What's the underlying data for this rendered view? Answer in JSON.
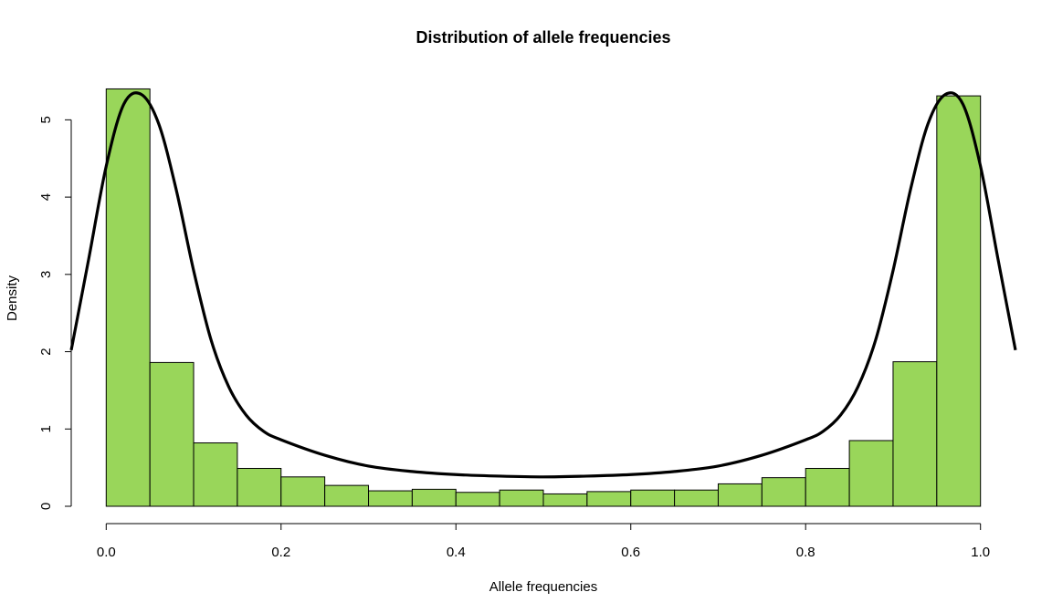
{
  "chart_data": {
    "type": "bar",
    "title": "Distribution of allele frequencies",
    "xlabel": "Allele frequencies",
    "ylabel": "Density",
    "xlim": [
      -0.04,
      1.04
    ],
    "ylim": [
      0,
      5.5
    ],
    "x_ticks": [
      "0.0",
      "0.2",
      "0.4",
      "0.6",
      "0.8",
      "1.0"
    ],
    "y_ticks": [
      "0",
      "1",
      "2",
      "3",
      "4",
      "5"
    ],
    "bin_width": 0.05,
    "bins": [
      {
        "start": 0.0,
        "value": 5.4
      },
      {
        "start": 0.05,
        "value": 1.86
      },
      {
        "start": 0.1,
        "value": 0.82
      },
      {
        "start": 0.15,
        "value": 0.49
      },
      {
        "start": 0.2,
        "value": 0.38
      },
      {
        "start": 0.25,
        "value": 0.27
      },
      {
        "start": 0.3,
        "value": 0.2
      },
      {
        "start": 0.35,
        "value": 0.22
      },
      {
        "start": 0.4,
        "value": 0.18
      },
      {
        "start": 0.45,
        "value": 0.21
      },
      {
        "start": 0.5,
        "value": 0.16
      },
      {
        "start": 0.55,
        "value": 0.19
      },
      {
        "start": 0.6,
        "value": 0.21
      },
      {
        "start": 0.65,
        "value": 0.21
      },
      {
        "start": 0.7,
        "value": 0.29
      },
      {
        "start": 0.75,
        "value": 0.37
      },
      {
        "start": 0.8,
        "value": 0.49
      },
      {
        "start": 0.85,
        "value": 0.85
      },
      {
        "start": 0.9,
        "value": 1.87
      },
      {
        "start": 0.95,
        "value": 5.31
      }
    ],
    "density_curve": {
      "x": [
        -0.04,
        -0.02,
        0.0,
        0.02,
        0.04,
        0.06,
        0.08,
        0.1,
        0.12,
        0.14,
        0.16,
        0.18,
        0.2,
        0.25,
        0.3,
        0.35,
        0.4,
        0.45,
        0.5,
        0.55,
        0.6,
        0.65,
        0.7,
        0.75,
        0.8,
        0.82,
        0.84,
        0.86,
        0.88,
        0.9,
        0.92,
        0.94,
        0.96,
        0.98,
        1.0,
        1.02,
        1.04
      ],
      "y": [
        2.02,
        3.2,
        4.4,
        5.2,
        5.33,
        4.95,
        4.1,
        3.05,
        2.15,
        1.55,
        1.18,
        0.97,
        0.86,
        0.66,
        0.52,
        0.45,
        0.41,
        0.39,
        0.38,
        0.39,
        0.41,
        0.45,
        0.52,
        0.66,
        0.86,
        0.97,
        1.18,
        1.55,
        2.15,
        3.05,
        4.1,
        4.95,
        5.33,
        5.2,
        4.4,
        3.2,
        2.02
      ]
    },
    "bar_color": "#99d65a",
    "bar_stroke": "#000000",
    "curve_color": "#000000",
    "grid": false,
    "legend": "none"
  }
}
